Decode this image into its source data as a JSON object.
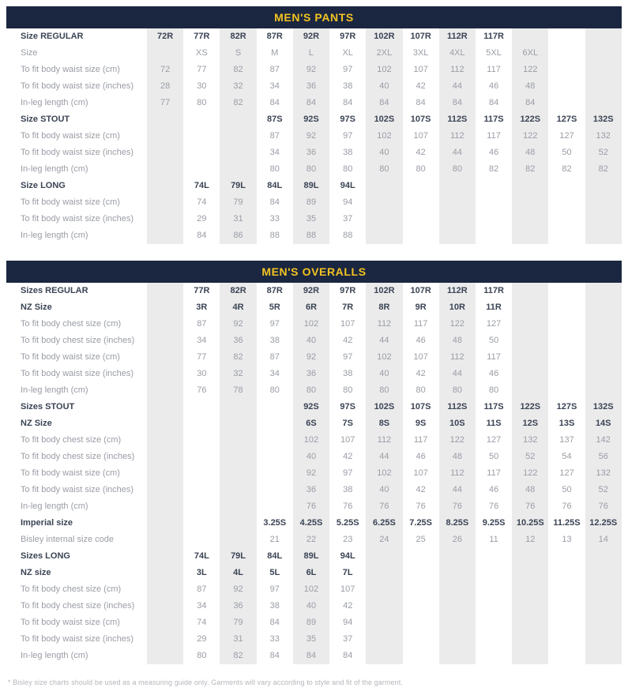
{
  "colors": {
    "header_bg": "#1B2740",
    "header_text": "#F3C322",
    "bold_text": "#3B4454",
    "light_text": "#9A9DA5",
    "column_stripe": "#EBEBEC"
  },
  "footnote": "* Bisley size charts should be used as a measuring guide only. Garments will vary according to style and fit of the garment.",
  "tables": [
    {
      "title": "MEN'S PANTS",
      "columns": 13,
      "rows": [
        {
          "label": "Size REGULAR",
          "bold": true,
          "values": [
            "72R",
            "77R",
            "82R",
            "87R",
            "92R",
            "97R",
            "102R",
            "107R",
            "112R",
            "117R",
            "",
            "",
            ""
          ]
        },
        {
          "label": "Size",
          "bold": false,
          "values": [
            "",
            "XS",
            "S",
            "M",
            "L",
            "XL",
            "2XL",
            "3XL",
            "4XL",
            "5XL",
            "6XL",
            "",
            ""
          ]
        },
        {
          "label": "To fit body waist size (cm)",
          "bold": false,
          "values": [
            "72",
            "77",
            "82",
            "87",
            "92",
            "97",
            "102",
            "107",
            "112",
            "117",
            "122",
            "",
            ""
          ]
        },
        {
          "label": "To fit body waist size (inches)",
          "bold": false,
          "values": [
            "28",
            "30",
            "32",
            "34",
            "36",
            "38",
            "40",
            "42",
            "44",
            "46",
            "48",
            "",
            ""
          ]
        },
        {
          "label": "In-leg length (cm)",
          "bold": false,
          "values": [
            "77",
            "80",
            "82",
            "84",
            "84",
            "84",
            "84",
            "84",
            "84",
            "84",
            "84",
            "",
            ""
          ]
        },
        {
          "label": "Size STOUT",
          "bold": true,
          "values": [
            "",
            "",
            "",
            "87S",
            "92S",
            "97S",
            "102S",
            "107S",
            "112S",
            "117S",
            "122S",
            "127S",
            "132S"
          ]
        },
        {
          "label": "To fit body waist size (cm)",
          "bold": false,
          "values": [
            "",
            "",
            "",
            "87",
            "92",
            "97",
            "102",
            "107",
            "112",
            "117",
            "122",
            "127",
            "132"
          ]
        },
        {
          "label": "To fit body waist size (inches)",
          "bold": false,
          "values": [
            "",
            "",
            "",
            "34",
            "36",
            "38",
            "40",
            "42",
            "44",
            "46",
            "48",
            "50",
            "52"
          ]
        },
        {
          "label": "In-leg length (cm)",
          "bold": false,
          "values": [
            "",
            "",
            "",
            "80",
            "80",
            "80",
            "80",
            "80",
            "80",
            "82",
            "82",
            "82",
            "82"
          ]
        },
        {
          "label": "Size LONG",
          "bold": true,
          "values": [
            "",
            "74L",
            "79L",
            "84L",
            "89L",
            "94L",
            "",
            "",
            "",
            "",
            "",
            "",
            ""
          ]
        },
        {
          "label": "To fit body waist size (cm)",
          "bold": false,
          "values": [
            "",
            "74",
            "79",
            "84",
            "89",
            "94",
            "",
            "",
            "",
            "",
            "",
            "",
            ""
          ]
        },
        {
          "label": "To fit body waist size (inches)",
          "bold": false,
          "values": [
            "",
            "29",
            "31",
            "33",
            "35",
            "37",
            "",
            "",
            "",
            "",
            "",
            "",
            ""
          ]
        },
        {
          "label": "In-leg length (cm)",
          "bold": false,
          "values": [
            "",
            "84",
            "86",
            "88",
            "88",
            "88",
            "",
            "",
            "",
            "",
            "",
            "",
            ""
          ]
        }
      ]
    },
    {
      "title": "MEN'S OVERALLS",
      "columns": 13,
      "rows": [
        {
          "label": "Sizes REGULAR",
          "bold": true,
          "values": [
            "",
            "77R",
            "82R",
            "87R",
            "92R",
            "97R",
            "102R",
            "107R",
            "112R",
            "117R",
            "",
            "",
            ""
          ]
        },
        {
          "label": "NZ Size",
          "bold": true,
          "values": [
            "",
            "3R",
            "4R",
            "5R",
            "6R",
            "7R",
            "8R",
            "9R",
            "10R",
            "11R",
            "",
            "",
            ""
          ]
        },
        {
          "label": "To fit body chest size (cm)",
          "bold": false,
          "values": [
            "",
            "87",
            "92",
            "97",
            "102",
            "107",
            "112",
            "117",
            "122",
            "127",
            "",
            "",
            ""
          ]
        },
        {
          "label": "To fit body chest size (inches)",
          "bold": false,
          "values": [
            "",
            "34",
            "36",
            "38",
            "40",
            "42",
            "44",
            "46",
            "48",
            "50",
            "",
            "",
            ""
          ]
        },
        {
          "label": "To fit body waist size (cm)",
          "bold": false,
          "values": [
            "",
            "77",
            "82",
            "87",
            "92",
            "97",
            "102",
            "107",
            "112",
            "117",
            "",
            "",
            ""
          ]
        },
        {
          "label": "To fit body waist size (inches)",
          "bold": false,
          "values": [
            "",
            "30",
            "32",
            "34",
            "36",
            "38",
            "40",
            "42",
            "44",
            "46",
            "",
            "",
            ""
          ]
        },
        {
          "label": "In-leg length (cm)",
          "bold": false,
          "values": [
            "",
            "76",
            "78",
            "80",
            "80",
            "80",
            "80",
            "80",
            "80",
            "80",
            "",
            "",
            ""
          ]
        },
        {
          "label": "Sizes STOUT",
          "bold": true,
          "values": [
            "",
            "",
            "",
            "",
            "92S",
            "97S",
            "102S",
            "107S",
            "112S",
            "117S",
            "122S",
            "127S",
            "132S"
          ]
        },
        {
          "label": "NZ Size",
          "bold": true,
          "values": [
            "",
            "",
            "",
            "",
            "6S",
            "7S",
            "8S",
            "9S",
            "10S",
            "11S",
            "12S",
            "13S",
            "14S"
          ]
        },
        {
          "label": "To fit body chest size (cm)",
          "bold": false,
          "values": [
            "",
            "",
            "",
            "",
            "102",
            "107",
            "112",
            "117",
            "122",
            "127",
            "132",
            "137",
            "142"
          ]
        },
        {
          "label": "To fit body chest size (inches)",
          "bold": false,
          "values": [
            "",
            "",
            "",
            "",
            "40",
            "42",
            "44",
            "46",
            "48",
            "50",
            "52",
            "54",
            "56"
          ]
        },
        {
          "label": "To fit body waist size (cm)",
          "bold": false,
          "values": [
            "",
            "",
            "",
            "",
            "92",
            "97",
            "102",
            "107",
            "112",
            "117",
            "122",
            "127",
            "132"
          ]
        },
        {
          "label": "To fit body waist size (inches)",
          "bold": false,
          "values": [
            "",
            "",
            "",
            "",
            "36",
            "38",
            "40",
            "42",
            "44",
            "46",
            "48",
            "50",
            "52"
          ]
        },
        {
          "label": "In-leg length (cm)",
          "bold": false,
          "values": [
            "",
            "",
            "",
            "",
            "76",
            "76",
            "76",
            "76",
            "76",
            "76",
            "76",
            "76",
            "76"
          ]
        },
        {
          "label": "Imperial size",
          "bold": true,
          "values": [
            "",
            "",
            "",
            "3.25S",
            "4.25S",
            "5.25S",
            "6.25S",
            "7.25S",
            "8.25S",
            "9.25S",
            "10.25S",
            "11.25S",
            "12.25S"
          ]
        },
        {
          "label": "Bisley internal size code",
          "bold": false,
          "values": [
            "",
            "",
            "",
            "21",
            "22",
            "23",
            "24",
            "25",
            "26",
            "11",
            "12",
            "13",
            "14"
          ]
        },
        {
          "label": "Sizes LONG",
          "bold": true,
          "values": [
            "",
            "74L",
            "79L",
            "84L",
            "89L",
            "94L",
            "",
            "",
            "",
            "",
            "",
            "",
            ""
          ]
        },
        {
          "label": "NZ size",
          "bold": true,
          "values": [
            "",
            "3L",
            "4L",
            "5L",
            "6L",
            "7L",
            "",
            "",
            "",
            "",
            "",
            "",
            ""
          ]
        },
        {
          "label": "To fit body chest size (cm)",
          "bold": false,
          "values": [
            "",
            "87",
            "92",
            "97",
            "102",
            "107",
            "",
            "",
            "",
            "",
            "",
            "",
            ""
          ]
        },
        {
          "label": "To fit body chest size (inches)",
          "bold": false,
          "values": [
            "",
            "34",
            "36",
            "38",
            "40",
            "42",
            "",
            "",
            "",
            "",
            "",
            "",
            ""
          ]
        },
        {
          "label": "To fit body waist size (cm)",
          "bold": false,
          "values": [
            "",
            "74",
            "79",
            "84",
            "89",
            "94",
            "",
            "",
            "",
            "",
            "",
            "",
            ""
          ]
        },
        {
          "label": "To fit body waist size (inches)",
          "bold": false,
          "values": [
            "",
            "29",
            "31",
            "33",
            "35",
            "37",
            "",
            "",
            "",
            "",
            "",
            "",
            ""
          ]
        },
        {
          "label": "In-leg length (cm)",
          "bold": false,
          "values": [
            "",
            "80",
            "82",
            "84",
            "84",
            "84",
            "",
            "",
            "",
            "",
            "",
            "",
            ""
          ]
        }
      ]
    }
  ]
}
